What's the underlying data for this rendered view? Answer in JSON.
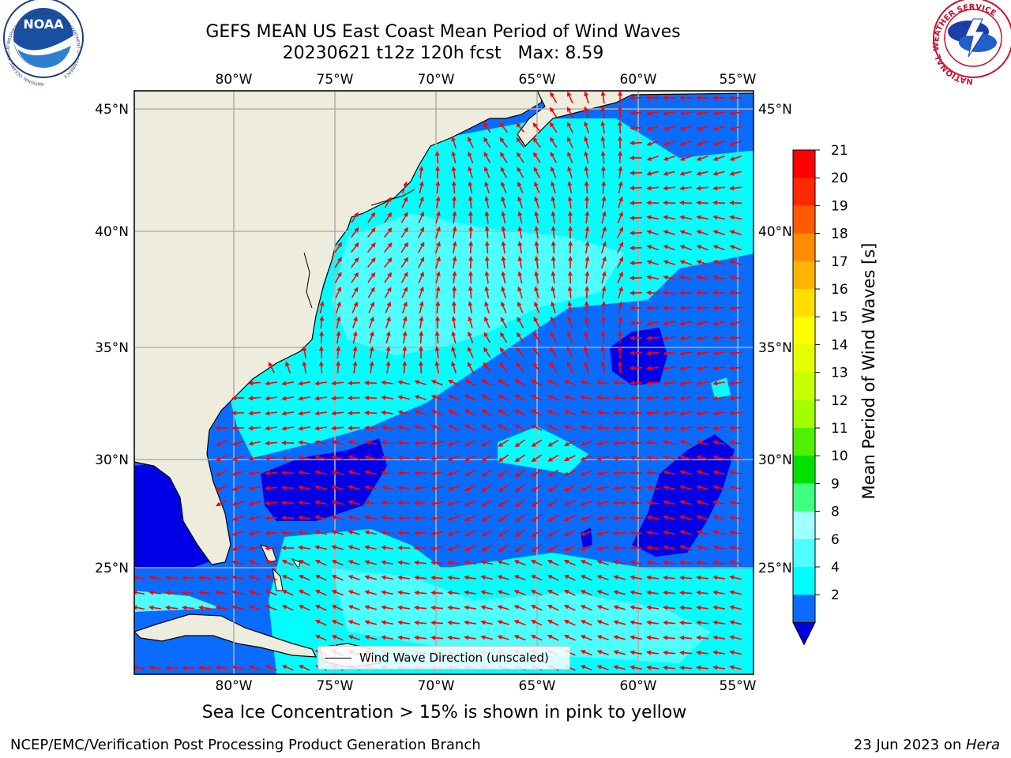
{
  "header": {
    "title": "GEFS MEAN US East Coast Mean Period of Wind Waves",
    "subtitle": "20230621 t12z 120h fcst   Max: 8.59"
  },
  "logos": {
    "noaa": "NOAA",
    "noaa_ring": "NATIONAL OCEANIC AND ATMOSPHERIC ADMINISTRATION · U.S. DEPARTMENT OF COMMERCE",
    "nws_ring": "NATIONAL WEATHER SERVICE"
  },
  "map": {
    "lon_top_labels": [
      "80°W",
      "75°W",
      "70°W",
      "65°W",
      "60°W",
      "55°W"
    ],
    "lon_bottom_labels": [
      "80°W",
      "75°W",
      "70°W",
      "65°W",
      "60°W",
      "55°W"
    ],
    "lat_left_labels": [
      "45°N",
      "40°N",
      "35°N",
      "30°N",
      "25°N"
    ],
    "lat_right_labels": [
      "45°N",
      "40°N",
      "35°N",
      "30°N",
      "25°N"
    ],
    "extent": {
      "lon_min": -85,
      "lon_max": -54.2,
      "lat_min": 20.5,
      "lat_max": 45.8
    },
    "land_color": "#eeecdc",
    "arrow_color": "#ff0000",
    "legend_label": "Wind Wave Direction (unscaled)"
  },
  "colorbar": {
    "label": "Mean Period of Wind Waves [s]",
    "ticks": [
      "21",
      "20",
      "19",
      "18",
      "17",
      "16",
      "15",
      "14",
      "13",
      "12",
      "11",
      "10",
      "9",
      "8",
      "6",
      "4",
      "2"
    ],
    "colors": [
      "#0000e6",
      "#0a6cff",
      "#00ffff",
      "#4dffff",
      "#a0ffff",
      "#40ff80",
      "#00e000",
      "#50f000",
      "#a0ff00",
      "#c8ff00",
      "#e6ff00",
      "#ffff00",
      "#ffde00",
      "#ffb400",
      "#ff8c00",
      "#ff5a00",
      "#ff2800",
      "#ff0000"
    ]
  },
  "notes": {
    "sea_ice": "Sea Ice Concentration > 15% is shown in pink to yellow"
  },
  "footer": {
    "left": "NCEP/EMC/Verification Post Processing Product Generation Branch",
    "right_prefix": "23 Jun 2023 on ",
    "right_host": "Hera"
  }
}
